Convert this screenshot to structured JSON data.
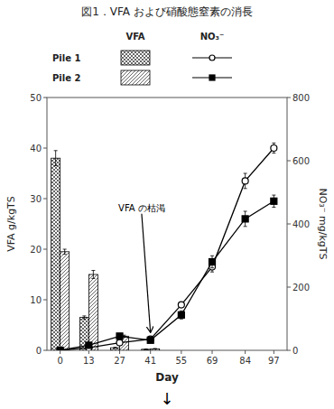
{
  "chart_data": {
    "type": "bar",
    "title": "図1．VFA および硝酸態窒素の消長",
    "xlabel": "Day",
    "ylabel": "VFA g/kgTS",
    "y2label": "NO₃⁻ mg/kgTS",
    "note": "↓",
    "legend": "top",
    "legend_headers": [
      "VFA",
      "NO₃⁻"
    ],
    "series": [
      {
        "name": "Pile 1",
        "type": "bar",
        "axis": "y",
        "color": "#ffffff",
        "x": [
          0,
          13,
          27,
          41
        ],
        "values": [
          38.0,
          6.5,
          0.5,
          0.2
        ],
        "errors": [
          1.5,
          0.3,
          0.1,
          0.05
        ]
      },
      {
        "name": "Pile 2",
        "type": "bar",
        "axis": "y",
        "color": "#ffffff",
        "x": [
          0,
          13,
          27,
          41
        ],
        "values": [
          19.5,
          15.0,
          2.8,
          0.3
        ],
        "errors": [
          0.5,
          0.8,
          0.2,
          0.05
        ]
      },
      {
        "name": "Pile 1",
        "type": "line",
        "axis": "y2",
        "color": "#000000",
        "marker": "circle-open",
        "line_style": "solid",
        "x": [
          0,
          13,
          27,
          41,
          55,
          69,
          84,
          97
        ],
        "values": [
          0.0,
          8.0,
          24.0,
          35.2,
          144.0,
          264.0,
          536.0,
          640.0
        ],
        "errors": [
          0,
          0,
          0,
          3.2,
          8.0,
          16.0,
          24.0,
          16.0
        ]
      },
      {
        "name": "Pile 2",
        "type": "line",
        "axis": "y2",
        "color": "#000000",
        "marker": "square",
        "line_style": "solid",
        "x": [
          0,
          13,
          27,
          41,
          55,
          69,
          84,
          97
        ],
        "values": [
          0.0,
          16.0,
          44.8,
          32.0,
          112.0,
          280.0,
          416.0,
          472.0
        ],
        "errors": [
          0,
          0,
          3.2,
          4.8,
          12.8,
          19.2,
          24.0,
          19.2
        ]
      }
    ],
    "xlim": [
      -6,
      103
    ],
    "xticks": [
      0,
      13,
      27,
      41,
      55,
      69,
      84,
      97
    ],
    "ylim": [
      0,
      50
    ],
    "yticks": [
      0,
      10,
      20,
      30,
      40,
      50
    ],
    "y2lim": [
      0,
      800
    ],
    "y2ticks": [
      0,
      200,
      400,
      600,
      800
    ],
    "grid": false,
    "annotations": [
      {
        "text": "VFA の枯渇",
        "x": 41,
        "y": 3.5,
        "text_x": 37,
        "text_y": 27
      }
    ]
  }
}
